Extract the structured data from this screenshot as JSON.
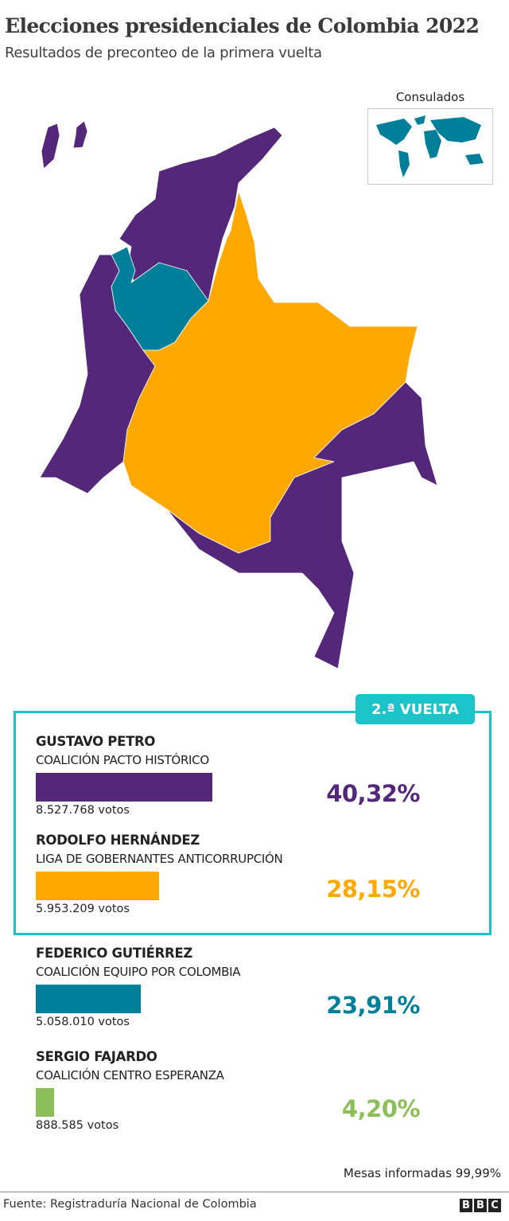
{
  "header": {
    "title": "Elecciones presidenciales de Colombia 2022",
    "subtitle": "Resultados de preconteo de la primera vuelta"
  },
  "map": {
    "inset_label": "Consulados",
    "inset_winner_color": "#007f9b",
    "region_winners": {
      "north_caribbean": "#54277a",
      "antioquia": "#007f9b",
      "pacific": "#54277a",
      "central_east": "#ffa800",
      "south_amazon": "#54277a",
      "islands": "#54277a"
    }
  },
  "legend": {
    "badge": "2.ª VUELTA",
    "border_color": "#1bc4c8"
  },
  "candidates": [
    {
      "name": "GUSTAVO PETRO",
      "party": "COALICIÓN PACTO HISTÓRICO",
      "votes": "8.527.768 votos",
      "percent": "40,32%",
      "share": 40.32,
      "color": "#54277a"
    },
    {
      "name": "RODOLFO HERNÁNDEZ",
      "party": "LIGA DE GOBERNANTES ANTICORRUPCIÓN",
      "votes": "5.953.209 votos",
      "percent": "28,15%",
      "share": 28.15,
      "color": "#ffa800"
    },
    {
      "name": "FEDERICO GUTIÉRREZ",
      "party": "COALICIÓN EQUIPO POR COLOMBIA",
      "votes": "5.058.010 votos",
      "percent": "23,91%",
      "share": 23.91,
      "color": "#007f9b"
    },
    {
      "name": "SERGIO FAJARDO",
      "party": "COALICIÓN CENTRO ESPERANZA",
      "votes": "888.585 votos",
      "percent": "4,20%",
      "share": 4.2,
      "color": "#8cbf5a"
    }
  ],
  "footer": {
    "mesas": "Mesas informadas 99,99%",
    "source": "Fuente: Registraduría Nacional de Colombia",
    "logo": "BBC"
  }
}
